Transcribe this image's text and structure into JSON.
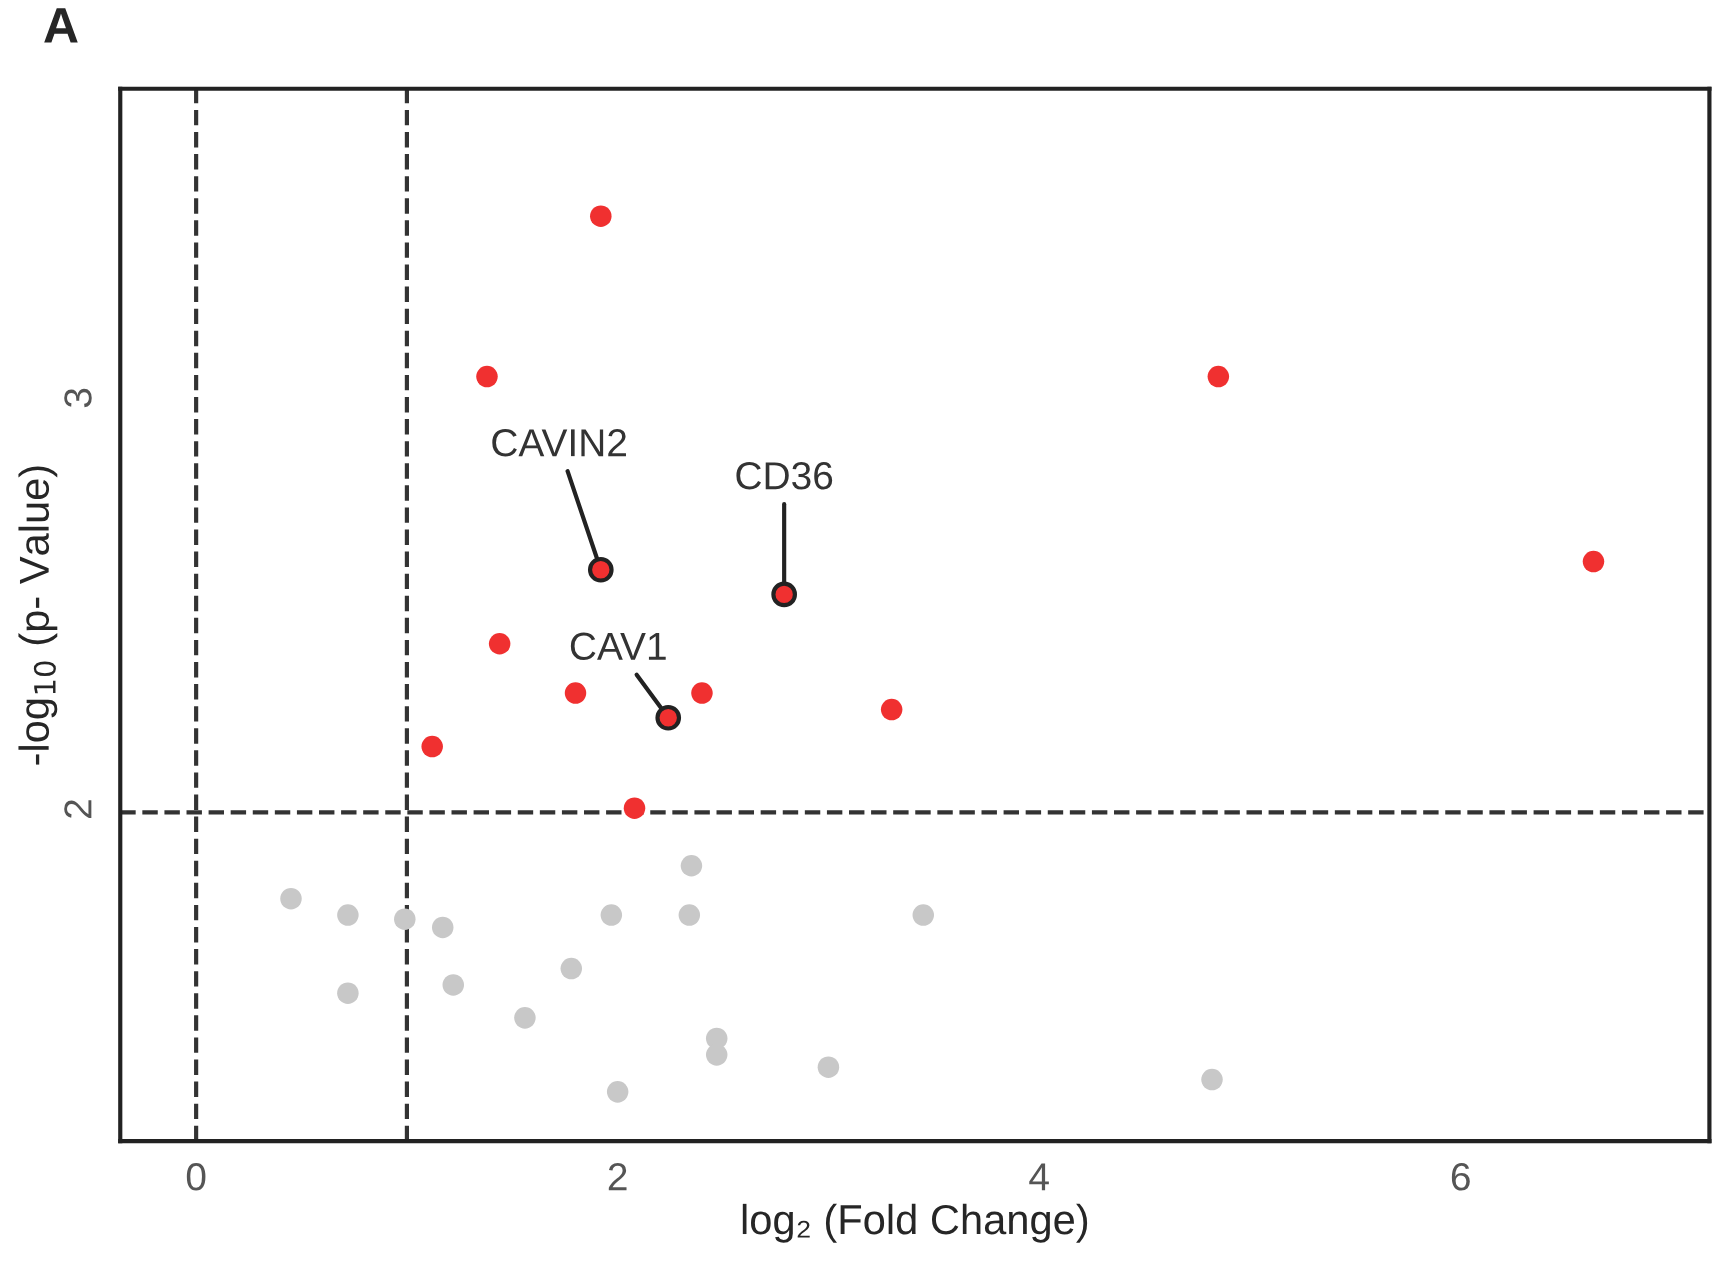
{
  "chart_data": {
    "type": "scatter",
    "title": "A",
    "xlabel": "log₂ (Fold Change)",
    "ylabel": "-log$_{10}$ (p- Value)",
    "xlim": [
      -0.36,
      7.18
    ],
    "ylim": [
      1.2,
      3.76
    ],
    "xticks": [
      0,
      2,
      4,
      6
    ],
    "yticks": [
      2,
      3
    ],
    "grid": false,
    "legend": false,
    "marker": "circle",
    "series": [
      {
        "color": "#f03030",
        "x": [
          1.92,
          1.38,
          4.85,
          6.63,
          1.92,
          2.79,
          1.44,
          1.8,
          2.4,
          2.24,
          3.3,
          1.12,
          2.08
        ],
        "values": [
          3.45,
          3.06,
          3.06,
          2.61,
          2.59,
          2.53,
          2.41,
          2.29,
          2.29,
          2.23,
          2.25,
          2.16,
          2.01
        ]
      },
      {
        "color": "#c8c8c8",
        "x": [
          0.45,
          0.72,
          0.99,
          1.17,
          0.72,
          1.22,
          1.56,
          1.78,
          1.97,
          2.35,
          2.34,
          2.47,
          2.47,
          2.0,
          3.0,
          3.45,
          4.82
        ],
        "values": [
          1.79,
          1.75,
          1.74,
          1.72,
          1.56,
          1.58,
          1.5,
          1.62,
          1.75,
          1.87,
          1.75,
          1.45,
          1.41,
          1.32,
          1.38,
          1.75,
          1.35
        ]
      }
    ],
    "ref_lines": [
      {
        "axis": "x",
        "value": 0,
        "line_style": "dashed",
        "color": "#333333"
      },
      {
        "axis": "x",
        "value": 1,
        "line_style": "dashed",
        "color": "#333333"
      },
      {
        "axis": "y",
        "value": 2,
        "line_style": "dashed",
        "color": "#333333"
      }
    ],
    "annotations": [
      {
        "text": "CAVIN2",
        "x": 1.92,
        "y": 2.59
      },
      {
        "text": "CD36",
        "x": 2.79,
        "y": 2.53
      },
      {
        "text": "CAV1",
        "x": 2.24,
        "y": 2.23
      }
    ]
  }
}
